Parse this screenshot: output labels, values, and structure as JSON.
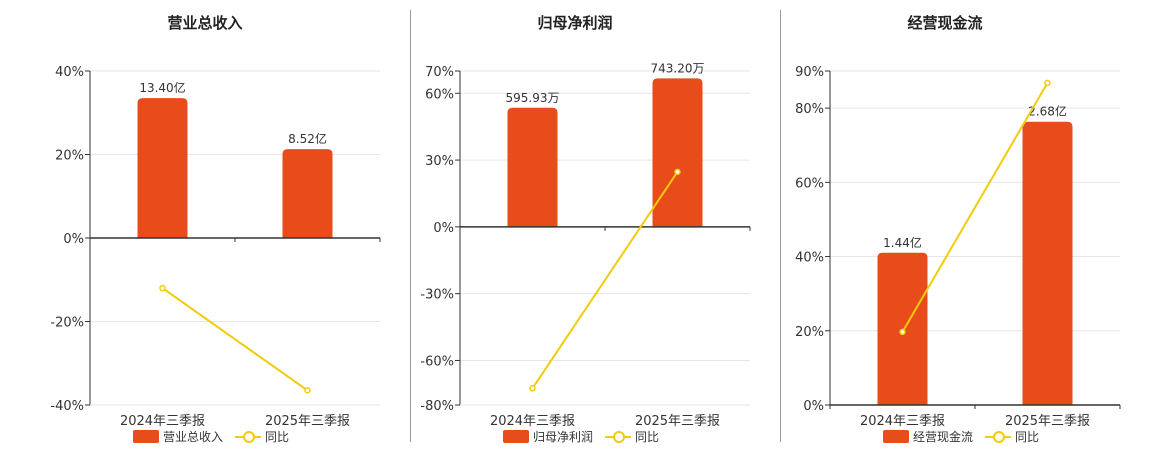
{
  "colors": {
    "bar": "#e84c1a",
    "line": "#f2cb0a",
    "axis": "#333333",
    "grid": "#e6e6e6",
    "divider": "#999999"
  },
  "legend": {
    "yoy": "同比"
  },
  "chart_data": [
    {
      "type": "bar",
      "title": "营业总收入",
      "categories": [
        "2024年三季报",
        "2025年三季报"
      ],
      "bar_series_name": "营业总收入",
      "bar_labels": [
        "13.40亿",
        "8.52亿"
      ],
      "bar_values": [
        13.4,
        8.52
      ],
      "bar_unit": "亿",
      "bar_axis_max": 16.0,
      "yoy_series_name": "同比",
      "yoy_values": [
        -12.0,
        -36.5
      ],
      "ylim": [
        -40,
        40
      ],
      "yticks": [
        40,
        20,
        0,
        -20,
        -40
      ],
      "grid": true,
      "legend_position": "bottom"
    },
    {
      "type": "bar",
      "title": "归母净利润",
      "categories": [
        "2024年三季报",
        "2025年三季报"
      ],
      "bar_series_name": "归母净利润",
      "bar_labels": [
        "595.93万",
        "743.20万"
      ],
      "bar_values": [
        595.93,
        743.2
      ],
      "bar_unit": "万",
      "bar_axis_max": 780.0,
      "yoy_series_name": "同比",
      "yoy_values": [
        -72.5,
        24.7
      ],
      "ylim": [
        -80,
        70
      ],
      "yticks": [
        70,
        60,
        30,
        0,
        -30,
        -60,
        -80
      ],
      "grid": true,
      "legend_position": "bottom"
    },
    {
      "type": "bar",
      "title": "经营现金流",
      "categories": [
        "2024年三季报",
        "2025年三季报"
      ],
      "bar_series_name": "经营现金流",
      "bar_labels": [
        "1.44亿",
        "2.68亿"
      ],
      "bar_values": [
        1.44,
        2.68
      ],
      "bar_unit": "亿",
      "bar_axis_max": 3.16,
      "yoy_series_name": "同比",
      "yoy_values": [
        19.7,
        86.8
      ],
      "ylim": [
        0,
        90
      ],
      "yticks": [
        90,
        80,
        60,
        40,
        20,
        0
      ],
      "grid": true,
      "legend_position": "bottom"
    }
  ]
}
